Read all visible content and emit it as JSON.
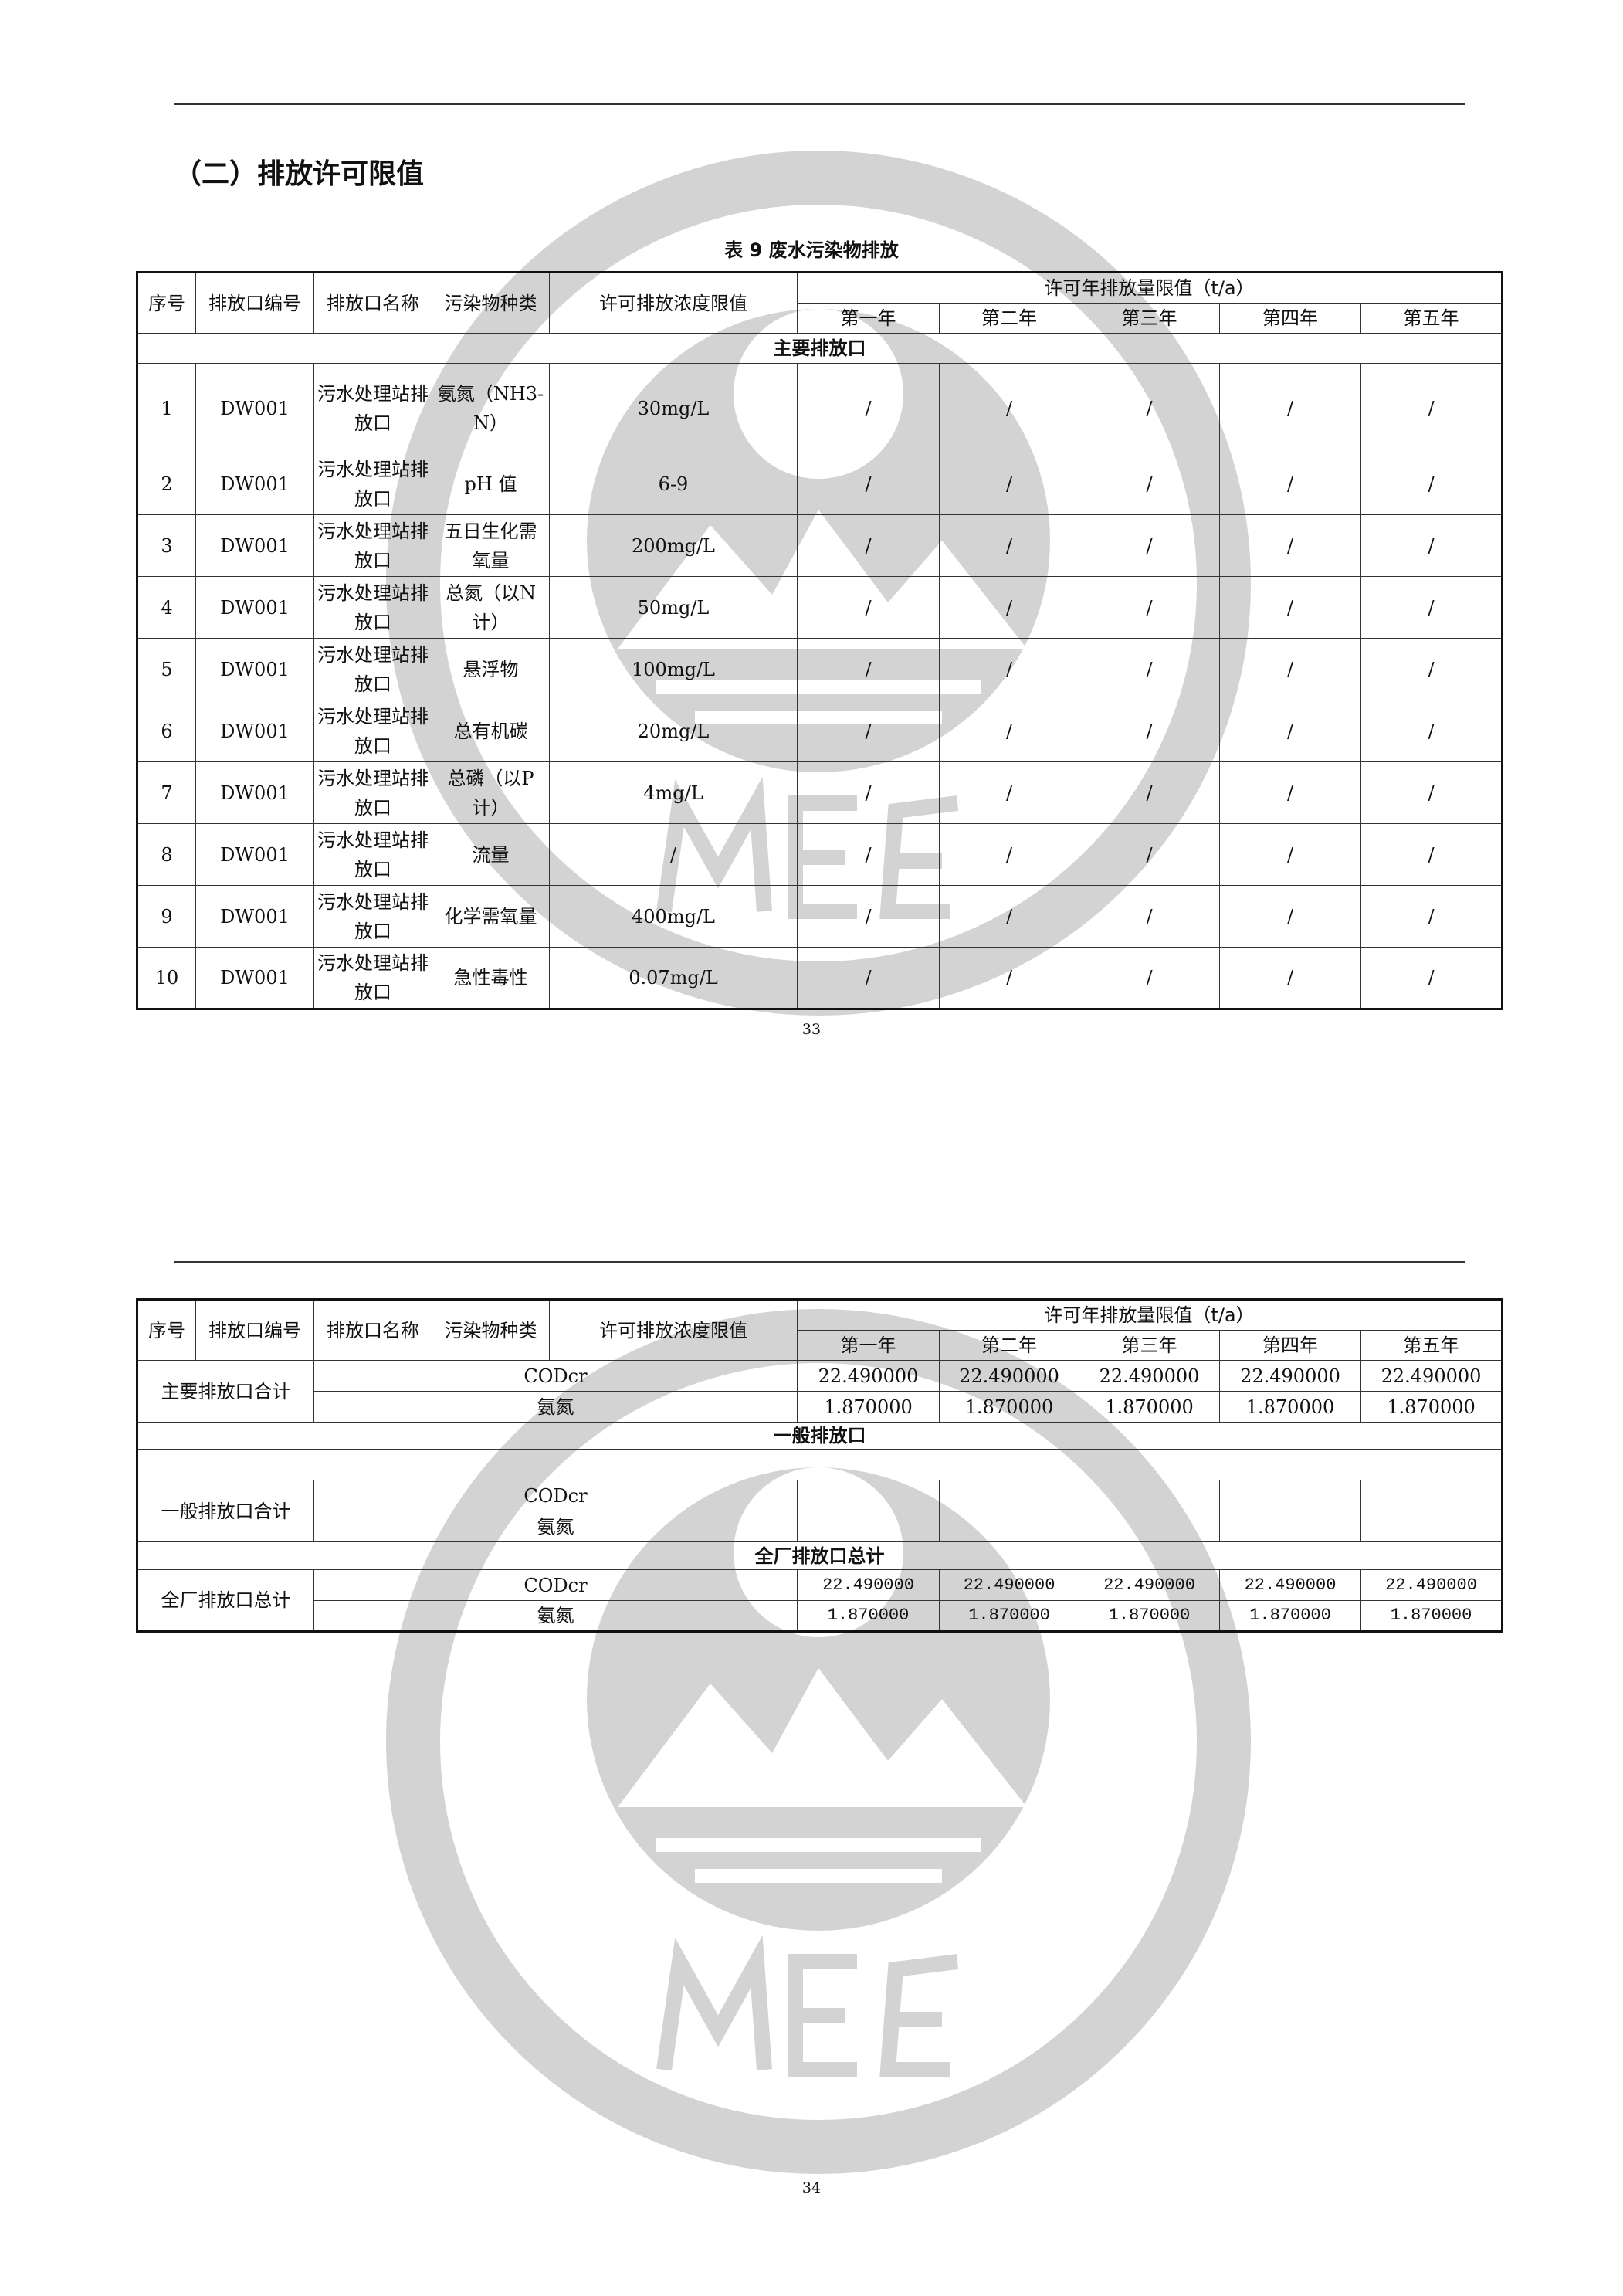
{
  "page1": {
    "heading": "（二）排放许可限值",
    "caption": "表 9   废水污染物排放",
    "page_number": "33"
  },
  "page2": {
    "page_number": "34"
  },
  "watermark": {
    "text": "MEE",
    "color": "#d3d3d3"
  },
  "header": {
    "seq": "序号",
    "outlet_code": "排放口编号",
    "outlet_name": "排放口名称",
    "pollutant": "污染物种类",
    "conc_limit": "许可排放浓度限值",
    "annual_limit": "许可年排放量限值（t/a）",
    "years": [
      "第一年",
      "第二年",
      "第三年",
      "第四年",
      "第五年"
    ]
  },
  "table1": {
    "section_main": "主要排放口",
    "rows": [
      {
        "seq": "1",
        "code": "DW001",
        "name": "污水处理站排放口",
        "pollutant": "氨氮（NH3-N）",
        "conc": "30mg/L",
        "years": [
          "/",
          "/",
          "/",
          "/",
          "/"
        ]
      },
      {
        "seq": "2",
        "code": "DW001",
        "name": "污水处理站排放口",
        "pollutant": "pH 值",
        "conc": "6-9",
        "years": [
          "/",
          "/",
          "/",
          "/",
          "/"
        ]
      },
      {
        "seq": "3",
        "code": "DW001",
        "name": "污水处理站排放口",
        "pollutant": "五日生化需氧量",
        "conc": "200mg/L",
        "years": [
          "/",
          "/",
          "/",
          "/",
          "/"
        ]
      },
      {
        "seq": "4",
        "code": "DW001",
        "name": "污水处理站排放口",
        "pollutant": "总氮（以N 计）",
        "conc": "50mg/L",
        "years": [
          "/",
          "/",
          "/",
          "/",
          "/"
        ]
      },
      {
        "seq": "5",
        "code": "DW001",
        "name": "污水处理站排放口",
        "pollutant": "悬浮物",
        "conc": "100mg/L",
        "years": [
          "/",
          "/",
          "/",
          "/",
          "/"
        ]
      },
      {
        "seq": "6",
        "code": "DW001",
        "name": "污水处理站排放口",
        "pollutant": "总有机碳",
        "conc": "20mg/L",
        "years": [
          "/",
          "/",
          "/",
          "/",
          "/"
        ]
      },
      {
        "seq": "7",
        "code": "DW001",
        "name": "污水处理站排放口",
        "pollutant": "总磷（以P 计）",
        "conc": "4mg/L",
        "years": [
          "/",
          "/",
          "/",
          "/",
          "/"
        ]
      },
      {
        "seq": "8",
        "code": "DW001",
        "name": "污水处理站排放口",
        "pollutant": "流量",
        "conc": "/",
        "years": [
          "/",
          "/",
          "/",
          "/",
          "/"
        ]
      },
      {
        "seq": "9",
        "code": "DW001",
        "name": "污水处理站排放口",
        "pollutant": "化学需氧量",
        "conc": "400mg/L",
        "years": [
          "/",
          "/",
          "/",
          "/",
          "/"
        ]
      },
      {
        "seq": "10",
        "code": "DW001",
        "name": "污水处理站排放口",
        "pollutant": "急性毒性",
        "conc": "0.07mg/L",
        "years": [
          "/",
          "/",
          "/",
          "/",
          "/"
        ]
      }
    ]
  },
  "table2": {
    "main_total": {
      "label": "主要排放口合计",
      "rows": [
        {
          "pollutant": "CODcr",
          "years": [
            "22.490000",
            "22.490000",
            "22.490000",
            "22.490000",
            "22.490000"
          ]
        },
        {
          "pollutant": "氨氮",
          "years": [
            "1.870000",
            "1.870000",
            "1.870000",
            "1.870000",
            "1.870000"
          ]
        }
      ]
    },
    "section_general": "一般排放口",
    "general_total": {
      "label": "一般排放口合计",
      "rows": [
        {
          "pollutant": "CODcr",
          "years": [
            "",
            "",
            "",
            "",
            ""
          ]
        },
        {
          "pollutant": "氨氮",
          "years": [
            "",
            "",
            "",
            "",
            ""
          ]
        }
      ]
    },
    "section_plant": "全厂排放口总计",
    "plant_total": {
      "label": "全厂排放口总计",
      "rows": [
        {
          "pollutant": "CODcr",
          "years": [
            "22.490000",
            "22.490000",
            "22.490000",
            "22.490000",
            "22.490000"
          ]
        },
        {
          "pollutant": "氨氮",
          "years": [
            "1.870000",
            "1.870000",
            "1.870000",
            "1.870000",
            "1.870000"
          ]
        }
      ]
    }
  }
}
